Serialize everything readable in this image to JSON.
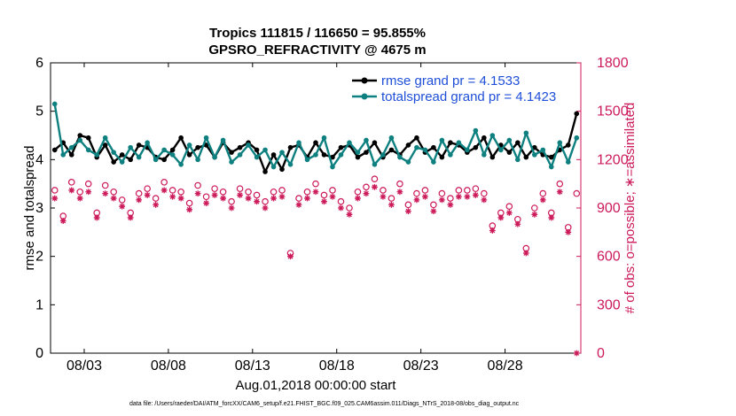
{
  "chart_data": {
    "type": "line",
    "title": "Tropics 111815 / 116650 = 95.855%",
    "subtitle": "GPSRO_REFRACTIVITY @ 4675 m",
    "xlabel": "Aug.01,2018 00:00:00 start",
    "ylabel_left": "rmse and totalspread",
    "ylabel_right": "# of obs: o=possible; ∗=assimilated",
    "xlim": [
      0,
      31.5
    ],
    "ylim_left": [
      0,
      6
    ],
    "ylim_right": [
      0,
      1800
    ],
    "x_ticks": [
      2,
      7,
      12,
      17,
      22,
      27
    ],
    "x_tick_labels": [
      "08/03",
      "08/08",
      "08/13",
      "08/18",
      "08/23",
      "08/28"
    ],
    "y_ticks_left": [
      "0",
      "1",
      "2",
      "3",
      "4",
      "5",
      "6"
    ],
    "y_ticks_right": [
      "0",
      "300",
      "600",
      "900",
      "1200",
      "1500",
      "1800"
    ],
    "legend": {
      "position": "top-right",
      "entries": [
        "rmse grand pr = 4.1533",
        "totalspread grand pr = 4.1423"
      ]
    },
    "footnote": "data file: /Users/raeder/DAI/ATM_forcXX/CAM6_setup/f.e21.FHIST_BGC.f09_025.CAM6assim.011/Diags_NTrS_2018-08/obs_diag_output.nc",
    "colors": {
      "rmse": "#000000",
      "totalspread": "#0f8080",
      "obs": "#cc1a5a"
    },
    "series": [
      {
        "name": "rmse",
        "axis": "left",
        "x": [
          0.25,
          0.75,
          1.25,
          1.75,
          2.25,
          2.75,
          3.25,
          3.75,
          4.25,
          4.75,
          5.25,
          5.75,
          6.25,
          6.75,
          7.25,
          7.75,
          8.25,
          8.75,
          9.25,
          9.75,
          10.25,
          10.75,
          11.25,
          11.75,
          12.25,
          12.75,
          13.25,
          13.75,
          14.25,
          14.75,
          15.25,
          15.75,
          16.25,
          16.75,
          17.25,
          17.75,
          18.25,
          18.75,
          19.25,
          19.75,
          20.25,
          20.75,
          21.25,
          21.75,
          22.25,
          22.75,
          23.25,
          23.75,
          24.25,
          24.75,
          25.25,
          25.75,
          26.25,
          26.75,
          27.25,
          27.75,
          28.25,
          28.75,
          29.25,
          29.75,
          30.25,
          30.75,
          31.25
        ],
        "values": [
          4.2,
          4.35,
          4.1,
          4.5,
          4.45,
          4.05,
          4.3,
          3.95,
          4.1,
          4.0,
          4.3,
          4.25,
          4.05,
          4.0,
          4.2,
          4.45,
          4.1,
          4.25,
          4.3,
          4.05,
          4.35,
          4.15,
          4.25,
          4.35,
          4.2,
          3.75,
          4.1,
          3.8,
          4.25,
          4.3,
          4.05,
          4.35,
          4.1,
          4.05,
          4.25,
          4.3,
          4.05,
          4.15,
          4.35,
          4.05,
          4.2,
          4.1,
          4.3,
          4.45,
          4.15,
          4.25,
          4.05,
          4.35,
          4.3,
          4.15,
          4.25,
          4.45,
          4.05,
          4.3,
          4.15,
          4.35,
          4.05,
          4.25,
          4.1,
          4.05,
          4.2,
          4.3,
          4.95
        ]
      },
      {
        "name": "totalspread",
        "axis": "left",
        "x": [
          0.25,
          0.75,
          1.25,
          1.75,
          2.25,
          2.75,
          3.25,
          3.75,
          4.25,
          4.75,
          5.25,
          5.75,
          6.25,
          6.75,
          7.25,
          7.75,
          8.25,
          8.75,
          9.25,
          9.75,
          10.25,
          10.75,
          11.25,
          11.75,
          12.25,
          12.75,
          13.25,
          13.75,
          14.25,
          14.75,
          15.25,
          15.75,
          16.25,
          16.75,
          17.25,
          17.75,
          18.25,
          18.75,
          19.25,
          19.75,
          20.25,
          20.75,
          21.25,
          21.75,
          22.25,
          22.75,
          23.25,
          23.75,
          24.25,
          24.75,
          25.25,
          25.75,
          26.25,
          26.75,
          27.25,
          27.75,
          28.25,
          28.75,
          29.25,
          29.75,
          30.25,
          30.75,
          31.25
        ],
        "values": [
          5.15,
          4.1,
          4.25,
          4.4,
          4.2,
          4.1,
          4.45,
          4.15,
          3.95,
          4.25,
          4.05,
          4.35,
          4.0,
          4.2,
          4.1,
          3.9,
          4.3,
          4.0,
          4.45,
          4.05,
          4.4,
          3.95,
          4.1,
          4.3,
          4.05,
          4.2,
          3.85,
          4.15,
          3.9,
          4.35,
          4.0,
          4.1,
          4.45,
          3.85,
          4.1,
          4.35,
          4.15,
          4.4,
          3.9,
          4.1,
          4.45,
          4.05,
          3.95,
          4.25,
          4.2,
          3.95,
          4.4,
          4.1,
          4.35,
          4.2,
          4.6,
          4.1,
          4.5,
          4.2,
          4.4,
          4.0,
          4.55,
          4.1,
          4.2,
          3.85,
          4.35,
          3.95,
          4.45
        ]
      },
      {
        "name": "possible obs (o)",
        "axis": "right",
        "x": [
          0.25,
          0.75,
          1.25,
          1.75,
          2.25,
          2.75,
          3.25,
          3.75,
          4.25,
          4.75,
          5.25,
          5.75,
          6.25,
          6.75,
          7.25,
          7.75,
          8.25,
          8.75,
          9.25,
          9.75,
          10.25,
          10.75,
          11.25,
          11.75,
          12.25,
          12.75,
          13.25,
          13.75,
          14.25,
          14.75,
          15.25,
          15.75,
          16.25,
          16.75,
          17.25,
          17.75,
          18.25,
          18.75,
          19.25,
          19.75,
          20.25,
          20.75,
          21.25,
          21.75,
          22.25,
          22.75,
          23.25,
          23.75,
          24.25,
          24.75,
          25.25,
          25.75,
          26.25,
          26.75,
          27.25,
          27.75,
          28.25,
          28.75,
          29.25,
          29.75,
          30.25,
          30.75,
          31.25
        ],
        "values": [
          1010,
          850,
          1060,
          1000,
          1050,
          870,
          1040,
          1000,
          950,
          870,
          990,
          1020,
          960,
          1060,
          1010,
          1000,
          930,
          1040,
          970,
          1020,
          1000,
          940,
          1020,
          1000,
          980,
          940,
          1000,
          1010,
          620,
          960,
          1000,
          1050,
          980,
          1010,
          940,
          900,
          1000,
          1030,
          1080,
          1010,
          960,
          1050,
          920,
          990,
          1010,
          920,
          990,
          960,
          1010,
          1010,
          1020,
          990,
          790,
          870,
          910,
          830,
          650,
          900,
          990,
          870,
          1050,
          780,
          990
        ]
      },
      {
        "name": "assimilated obs (*)",
        "axis": "right",
        "x": [
          0.25,
          0.75,
          1.25,
          1.75,
          2.25,
          2.75,
          3.25,
          3.75,
          4.25,
          4.75,
          5.25,
          5.75,
          6.25,
          6.75,
          7.25,
          7.75,
          8.25,
          8.75,
          9.25,
          9.75,
          10.25,
          10.75,
          11.25,
          11.75,
          12.25,
          12.75,
          13.25,
          13.75,
          14.25,
          14.75,
          15.25,
          15.75,
          16.25,
          16.75,
          17.25,
          17.75,
          18.25,
          18.75,
          19.25,
          19.75,
          20.25,
          20.75,
          21.25,
          21.75,
          22.25,
          22.75,
          23.25,
          23.75,
          24.25,
          24.75,
          25.25,
          25.75,
          26.25,
          26.75,
          27.25,
          27.75,
          28.25,
          28.75,
          29.25,
          29.75,
          30.25,
          30.75,
          31.25
        ],
        "values": [
          960,
          820,
          1010,
          960,
          1000,
          840,
          990,
          960,
          910,
          840,
          950,
          980,
          920,
          1010,
          970,
          960,
          890,
          990,
          930,
          980,
          960,
          900,
          980,
          960,
          940,
          900,
          960,
          970,
          600,
          920,
          960,
          1000,
          940,
          970,
          900,
          860,
          960,
          990,
          1030,
          970,
          920,
          1000,
          880,
          950,
          970,
          880,
          950,
          920,
          970,
          970,
          980,
          950,
          760,
          840,
          870,
          800,
          620,
          860,
          950,
          840,
          1000,
          750,
          0
        ]
      }
    ]
  }
}
